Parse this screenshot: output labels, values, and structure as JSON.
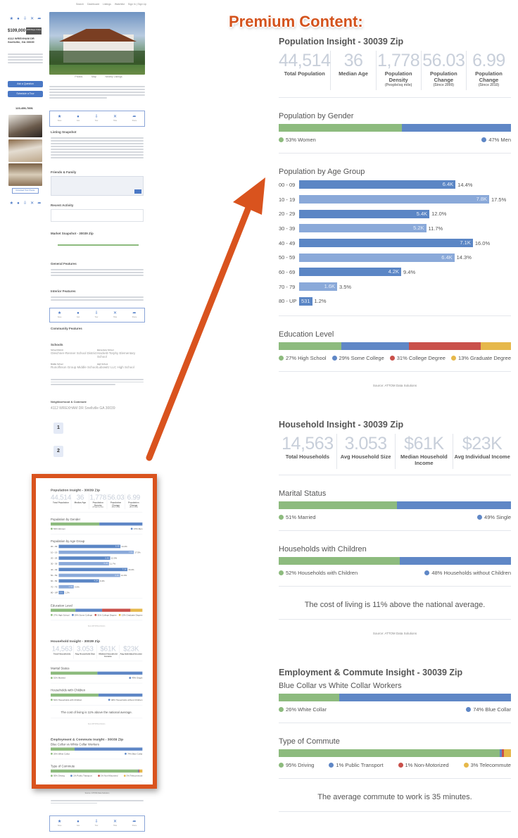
{
  "premium_header": "Premium Content:",
  "listing": {
    "nav": [
      "Search",
      "Dashboard",
      "Listings",
      "Watchlist",
      "Sign In | Sign Up"
    ],
    "actions": [
      "Save",
      "Ask",
      "Tour",
      "Hide",
      "Share"
    ],
    "price": "$109,000",
    "days_badge": "1000 Days Online",
    "address_line1": "4112 WREXHAM DR",
    "address_line2": "Snellville, GA 30039",
    "ask_button": "Ask a Question",
    "tour_button": "Schedule a Tour",
    "phone": "123-456-7891",
    "download_photos": "Download Their Photos",
    "photo_tabs": [
      "Photos",
      "Map",
      "Nearby Listings"
    ],
    "sections": {
      "listing_snapshot": "Listing Snapshot",
      "friends_family": "Friends & Family",
      "recent_activity": "Recent Activity",
      "market_snapshot": "Market Snapshot - 30039 Zip",
      "general_features": "General Features",
      "interior_features": "Interior Features",
      "community_features": "Community Features",
      "schools": "Schools",
      "neighborhood": "Neighborhood & Commute"
    },
    "schools": [
      {
        "type": "School District",
        "name": "Gleichner-Renner School District"
      },
      {
        "type": "Elementary School",
        "name": "Hackett-Torphy Elementary School"
      },
      {
        "type": "Middle School",
        "name": "Runolfsson Group Middle School"
      },
      {
        "type": "High School",
        "name": "Lubowitz LLC High School"
      }
    ],
    "neighborhood_address": "4112 WREXHAM DR Snellville GA 30039",
    "commute_badges": [
      "1",
      "2"
    ],
    "source": "Source: ATTOM Data Solutions"
  },
  "population": {
    "title": "Population Insight - 30039 Zip",
    "stats": [
      {
        "value": "44,514",
        "label": "Total Population",
        "sub": ""
      },
      {
        "value": "36",
        "label": "Median Age",
        "sub": ""
      },
      {
        "value": "1,778",
        "label": "Population Density",
        "sub": "(People/sq mile)"
      },
      {
        "value": "56.03",
        "label": "Population Change",
        "sub": "(Since 2000)"
      },
      {
        "value": "6.99",
        "label": "Population Change",
        "sub": "(Since 2010)"
      }
    ],
    "gender": {
      "title": "Population by Gender",
      "segments": [
        {
          "label": "53% Women",
          "pct": 53,
          "color": "#8dbb7e"
        },
        {
          "label": "47% Men",
          "pct": 47,
          "color": "#5f87c6"
        }
      ]
    },
    "age": {
      "title": "Population by Age Group",
      "groups": [
        {
          "range": "00 - 09",
          "count": "6.4K",
          "pct": "14.4%",
          "value": 14.4
        },
        {
          "range": "10 - 19",
          "count": "7.8K",
          "pct": "17.5%",
          "value": 17.5
        },
        {
          "range": "20 - 29",
          "count": "5.4K",
          "pct": "12.0%",
          "value": 12.0
        },
        {
          "range": "30 - 39",
          "count": "5.2K",
          "pct": "11.7%",
          "value": 11.7
        },
        {
          "range": "40 - 49",
          "count": "7.1K",
          "pct": "16.0%",
          "value": 16.0
        },
        {
          "range": "50 - 59",
          "count": "6.4K",
          "pct": "14.3%",
          "value": 14.3
        },
        {
          "range": "60 - 69",
          "count": "4.2K",
          "pct": "9.4%",
          "value": 9.4
        },
        {
          "range": "70 - 79",
          "count": "1.6K",
          "pct": "3.5%",
          "value": 3.5
        },
        {
          "range": "80 - UP",
          "count": "531",
          "pct": "1.2%",
          "value": 1.2
        }
      ]
    },
    "education": {
      "title": "Education Level",
      "segments": [
        {
          "label": "27% High School",
          "pct": 27,
          "color": "#8dbb7e"
        },
        {
          "label": "29% Some College",
          "pct": 29,
          "color": "#5f87c6"
        },
        {
          "label": "31% College Degree",
          "pct": 31,
          "color": "#c9504a"
        },
        {
          "label": "13% Graduate Degree",
          "pct": 13,
          "color": "#e6b84a"
        }
      ]
    },
    "source": "Source: ATTOM Data Solutions"
  },
  "household": {
    "title": "Household Insight - 30039 Zip",
    "stats": [
      {
        "value": "14,563",
        "label": "Total Households",
        "sub": ""
      },
      {
        "value": "3.053",
        "label": "Avg Household Size",
        "sub": ""
      },
      {
        "value": "$61K",
        "label": "Median Household Income",
        "sub": ""
      },
      {
        "value": "$23K",
        "label": "Avg Individual Income",
        "sub": ""
      }
    ],
    "marital": {
      "title": "Marital Status",
      "segments": [
        {
          "label": "51% Married",
          "pct": 51,
          "color": "#8dbb7e"
        },
        {
          "label": "49% Single",
          "pct": 49,
          "color": "#5f87c6"
        }
      ]
    },
    "children": {
      "title": "Households with Children",
      "segments": [
        {
          "label": "52% Households with Children",
          "pct": 52,
          "color": "#8dbb7e"
        },
        {
          "label": "48% Households without Children",
          "pct": 48,
          "color": "#5f87c6"
        }
      ]
    },
    "cost_of_living": "The cost of living is 11% above the national average.",
    "source": "Source: ATTOM Data Solutions"
  },
  "employment": {
    "title": "Employment & Commute Insight - 30039 Zip",
    "collar": {
      "title": "Blue Collar vs White Collar Workers",
      "segments": [
        {
          "label": "26% White Collar",
          "pct": 26,
          "color": "#8dbb7e"
        },
        {
          "label": "74% Blue Collar",
          "pct": 74,
          "color": "#5f87c6"
        }
      ]
    },
    "commute": {
      "title": "Type of Commute",
      "segments": [
        {
          "label": "95% Driving",
          "pct": 95,
          "color": "#8dbb7e"
        },
        {
          "label": "1% Public Transport",
          "pct": 1,
          "color": "#5f87c6"
        },
        {
          "label": "1% Non-Motorized",
          "pct": 1,
          "color": "#c9504a"
        },
        {
          "label": "3% Telecommute",
          "pct": 3,
          "color": "#e6b84a"
        }
      ]
    },
    "avg_commute": "The average commute to work is 35 minutes."
  },
  "arrow_color": "#d9531e"
}
